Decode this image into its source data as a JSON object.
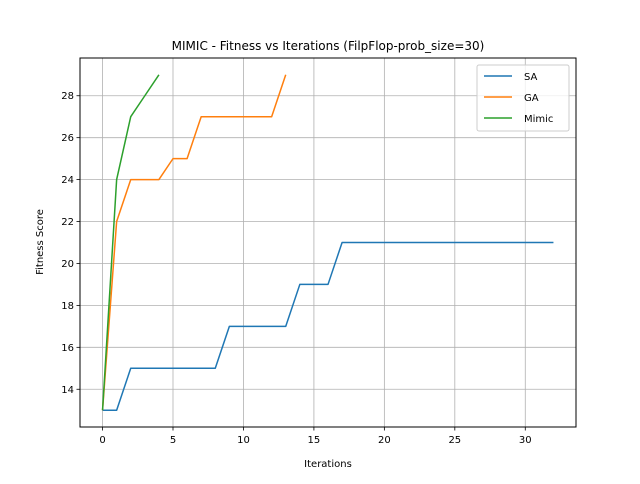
{
  "chart_data": {
    "type": "line",
    "title": "MIMIC - Fitness vs Iterations (FilpFlop-prob_size=30)",
    "xlabel": "Iterations",
    "ylabel": "Fitness Score",
    "xlim": [
      -1.6,
      33.6
    ],
    "ylim": [
      12.2,
      29.8
    ],
    "xticks": [
      0,
      5,
      10,
      15,
      20,
      25,
      30
    ],
    "yticks": [
      14,
      16,
      18,
      20,
      22,
      24,
      26,
      28
    ],
    "grid": true,
    "legend_position": "top-right",
    "series": [
      {
        "name": "SA",
        "color": "#1f77b4",
        "x": [
          0,
          1,
          2,
          3,
          4,
          5,
          6,
          7,
          8,
          9,
          10,
          11,
          12,
          13,
          14,
          15,
          16,
          17,
          18,
          19,
          20,
          21,
          22,
          23,
          24,
          25,
          26,
          27,
          28,
          29,
          30,
          31,
          32
        ],
        "y": [
          13,
          13,
          15,
          15,
          15,
          15,
          15,
          15,
          15,
          17,
          17,
          17,
          17,
          17,
          19,
          19,
          19,
          21,
          21,
          21,
          21,
          21,
          21,
          21,
          21,
          21,
          21,
          21,
          21,
          21,
          21,
          21,
          21
        ]
      },
      {
        "name": "GA",
        "color": "#ff7f0e",
        "x": [
          0,
          1,
          2,
          3,
          4,
          5,
          6,
          7,
          8,
          9,
          10,
          11,
          12,
          13
        ],
        "y": [
          13,
          22,
          24,
          24,
          24,
          25,
          25,
          27,
          27,
          27,
          27,
          27,
          27,
          29
        ]
      },
      {
        "name": "Mimic",
        "color": "#2ca02c",
        "x": [
          0,
          1,
          2,
          3,
          4
        ],
        "y": [
          13,
          24,
          27,
          28,
          29
        ]
      }
    ]
  }
}
